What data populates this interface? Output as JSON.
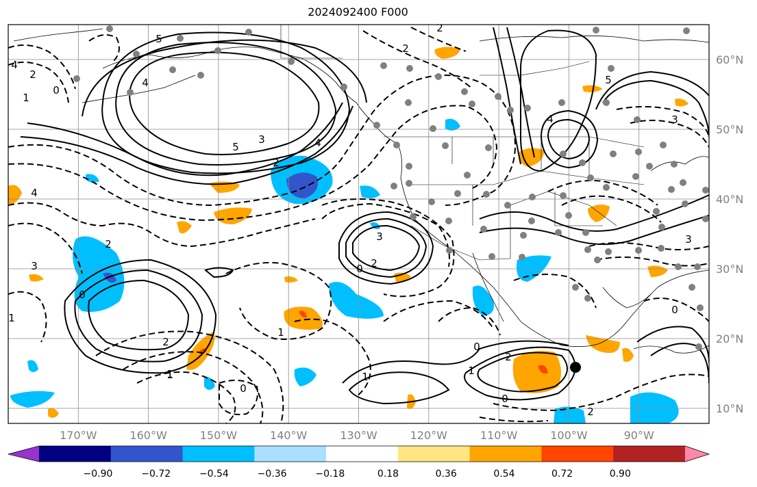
{
  "title": "2024092400 F000",
  "lon_labels": [
    "170°W",
    "160°W",
    "150°W",
    "140°W",
    "130°W",
    "120°W",
    "110°W",
    "100°W",
    "90°W"
  ],
  "lat_labels": [
    "60°N",
    "50°N",
    "40°N",
    "30°N",
    "20°N",
    "10°N"
  ],
  "colorbar": {
    "colors": [
      "#9933cc",
      "#000080",
      "#3355cc",
      "#00bfff",
      "#aadfff",
      "#ffffff",
      "#ffe680",
      "#ffa500",
      "#ff4500",
      "#b22222",
      "#ff88aa"
    ],
    "tick_labels": [
      "−0.90",
      "−0.72",
      "−0.54",
      "−0.36",
      "−0.18",
      "0.18",
      "0.36",
      "0.54",
      "0.72",
      "0.90"
    ]
  },
  "contour_labels": [
    "5",
    "4",
    "2",
    "0",
    "1",
    "4",
    "5",
    "3",
    "2",
    "4",
    "3",
    "2",
    "0",
    "3",
    "2",
    "1",
    "0",
    "1",
    "0",
    "1",
    "2",
    "1",
    "0",
    "2",
    "1",
    "0",
    "2",
    "3",
    "5",
    "4",
    "2",
    "3",
    "0",
    "1",
    "2",
    "4"
  ],
  "storm_marker_color": "#000000",
  "station_color": "#808080"
}
